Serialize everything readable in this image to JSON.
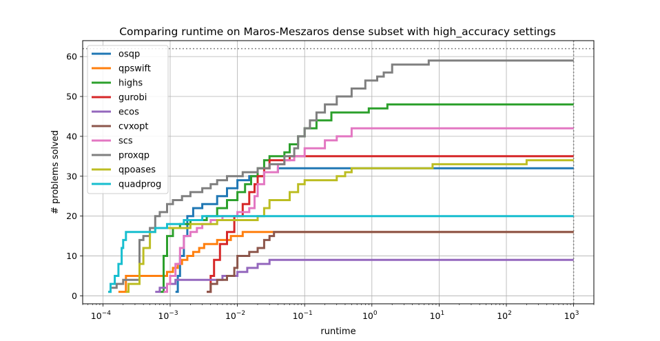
{
  "chart_data": {
    "type": "line",
    "title": "Comparing runtime on Maros-Meszaros dense subset with high_accuracy settings",
    "xlabel": "runtime",
    "ylabel": "# problems solved",
    "xscale": "log",
    "xlim": [
      5e-05,
      2000
    ],
    "ylim": [
      -2,
      64
    ],
    "xticks": [
      {
        "value": 0.0001,
        "base": "10",
        "exp": "−4"
      },
      {
        "value": 0.001,
        "base": "10",
        "exp": "−3"
      },
      {
        "value": 0.01,
        "base": "10",
        "exp": "−2"
      },
      {
        "value": 0.1,
        "base": "10",
        "exp": "−1"
      },
      {
        "value": 1,
        "base": "10",
        "exp": "0"
      },
      {
        "value": 10,
        "base": "10",
        "exp": "1"
      },
      {
        "value": 100,
        "base": "10",
        "exp": "2"
      },
      {
        "value": 1000,
        "base": "10",
        "exp": "3"
      }
    ],
    "yticks": [
      0,
      10,
      20,
      30,
      40,
      50,
      60
    ],
    "grid": true,
    "legend_position": "upper-left",
    "reference_lines": {
      "horizontal_y": 62,
      "vertical_x": 1000
    },
    "series": [
      {
        "name": "osqp",
        "color": "#1f77b4",
        "points": [
          [
            0.0012,
            1
          ],
          [
            0.0013,
            5
          ],
          [
            0.0014,
            10
          ],
          [
            0.0016,
            15
          ],
          [
            0.0018,
            20
          ],
          [
            0.0022,
            22
          ],
          [
            0.003,
            23
          ],
          [
            0.005,
            25
          ],
          [
            0.007,
            27
          ],
          [
            0.01,
            29
          ],
          [
            0.015,
            30
          ],
          [
            0.025,
            31
          ],
          [
            0.04,
            32
          ],
          [
            0.5,
            32
          ],
          [
            0.55,
            32
          ],
          [
            1000,
            32
          ]
        ]
      },
      {
        "name": "qpswift",
        "color": "#ff7f0e",
        "points": [
          [
            0.00017,
            1
          ],
          [
            0.00022,
            5
          ],
          [
            0.0007,
            5
          ],
          [
            0.0009,
            6
          ],
          [
            0.0011,
            7
          ],
          [
            0.0013,
            8
          ],
          [
            0.0015,
            9
          ],
          [
            0.0018,
            10
          ],
          [
            0.0022,
            11
          ],
          [
            0.0027,
            12
          ],
          [
            0.0032,
            13
          ],
          [
            0.005,
            14
          ],
          [
            0.008,
            15
          ],
          [
            0.012,
            16
          ],
          [
            0.025,
            16
          ],
          [
            1000,
            16
          ]
        ]
      },
      {
        "name": "highs",
        "color": "#2ca02c",
        "points": [
          [
            0.0007,
            1
          ],
          [
            0.0008,
            10
          ],
          [
            0.0009,
            15
          ],
          [
            0.0011,
            17
          ],
          [
            0.0014,
            18
          ],
          [
            0.002,
            19
          ],
          [
            0.0035,
            20
          ],
          [
            0.005,
            22
          ],
          [
            0.007,
            24
          ],
          [
            0.01,
            26
          ],
          [
            0.013,
            28
          ],
          [
            0.016,
            30
          ],
          [
            0.02,
            32
          ],
          [
            0.025,
            34
          ],
          [
            0.03,
            35
          ],
          [
            0.05,
            36
          ],
          [
            0.06,
            38
          ],
          [
            0.08,
            40
          ],
          [
            0.1,
            42
          ],
          [
            0.15,
            44
          ],
          [
            0.25,
            46
          ],
          [
            0.9,
            47
          ],
          [
            1.7,
            48
          ],
          [
            1000,
            48
          ]
        ]
      },
      {
        "name": "gurobi",
        "color": "#d62728",
        "points": [
          [
            0.0035,
            1
          ],
          [
            0.004,
            5
          ],
          [
            0.0045,
            9
          ],
          [
            0.0055,
            13
          ],
          [
            0.007,
            16
          ],
          [
            0.009,
            20
          ],
          [
            0.012,
            23
          ],
          [
            0.015,
            26
          ],
          [
            0.018,
            28
          ],
          [
            0.02,
            30
          ],
          [
            0.025,
            32
          ],
          [
            0.03,
            34
          ],
          [
            0.06,
            35
          ],
          [
            1000,
            35
          ]
        ]
      },
      {
        "name": "ecos",
        "color": "#9467bd",
        "points": [
          [
            0.0006,
            1
          ],
          [
            0.0007,
            2
          ],
          [
            0.0009,
            3
          ],
          [
            0.0012,
            4
          ],
          [
            0.004,
            4
          ],
          [
            0.006,
            5
          ],
          [
            0.01,
            6
          ],
          [
            0.014,
            7
          ],
          [
            0.02,
            8
          ],
          [
            0.03,
            9
          ],
          [
            0.05,
            9
          ],
          [
            1000,
            9
          ]
        ]
      },
      {
        "name": "cvxopt",
        "color": "#8c564b",
        "points": [
          [
            0.0035,
            1
          ],
          [
            0.004,
            3
          ],
          [
            0.005,
            4
          ],
          [
            0.007,
            5
          ],
          [
            0.009,
            7
          ],
          [
            0.01,
            10
          ],
          [
            0.015,
            11
          ],
          [
            0.02,
            12
          ],
          [
            0.025,
            14
          ],
          [
            0.03,
            15
          ],
          [
            0.035,
            16
          ],
          [
            1000,
            16
          ]
        ]
      },
      {
        "name": "scs",
        "color": "#e377c2",
        "points": [
          [
            0.0008,
            1
          ],
          [
            0.0009,
            3
          ],
          [
            0.001,
            5
          ],
          [
            0.0012,
            8
          ],
          [
            0.0014,
            12
          ],
          [
            0.0016,
            15
          ],
          [
            0.002,
            16
          ],
          [
            0.0025,
            17
          ],
          [
            0.003,
            18
          ],
          [
            0.004,
            19
          ],
          [
            0.006,
            20
          ],
          [
            0.01,
            21
          ],
          [
            0.015,
            22
          ],
          [
            0.018,
            25
          ],
          [
            0.02,
            28
          ],
          [
            0.025,
            31
          ],
          [
            0.04,
            33
          ],
          [
            0.05,
            34
          ],
          [
            0.07,
            35
          ],
          [
            0.1,
            37
          ],
          [
            0.2,
            39
          ],
          [
            0.3,
            40
          ],
          [
            0.5,
            42
          ],
          [
            1000,
            42
          ]
        ]
      },
      {
        "name": "proxqp",
        "color": "#7f7f7f",
        "points": [
          [
            0.00012,
            1
          ],
          [
            0.00013,
            2
          ],
          [
            0.00016,
            3
          ],
          [
            0.0002,
            4
          ],
          [
            0.00035,
            14
          ],
          [
            0.0004,
            15
          ],
          [
            0.0005,
            17
          ],
          [
            0.0006,
            20
          ],
          [
            0.0007,
            21
          ],
          [
            0.0009,
            23
          ],
          [
            0.0011,
            24
          ],
          [
            0.0015,
            25
          ],
          [
            0.002,
            26
          ],
          [
            0.003,
            27
          ],
          [
            0.004,
            28
          ],
          [
            0.005,
            29
          ],
          [
            0.007,
            30
          ],
          [
            0.012,
            31
          ],
          [
            0.02,
            32
          ],
          [
            0.03,
            33
          ],
          [
            0.05,
            35
          ],
          [
            0.07,
            37
          ],
          [
            0.08,
            40
          ],
          [
            0.1,
            42
          ],
          [
            0.12,
            44
          ],
          [
            0.15,
            46
          ],
          [
            0.2,
            48
          ],
          [
            0.3,
            50
          ],
          [
            0.5,
            52
          ],
          [
            0.8,
            54
          ],
          [
            1.2,
            55
          ],
          [
            1.5,
            56
          ],
          [
            2,
            58
          ],
          [
            2.5,
            58
          ],
          [
            7,
            59
          ],
          [
            1000,
            59
          ]
        ]
      },
      {
        "name": "qpoases",
        "color": "#bcbd22",
        "points": [
          [
            0.00022,
            1
          ],
          [
            0.00024,
            3
          ],
          [
            0.00035,
            8
          ],
          [
            0.0004,
            12
          ],
          [
            0.0005,
            16
          ],
          [
            0.0006,
            17
          ],
          [
            0.002,
            18
          ],
          [
            0.005,
            19
          ],
          [
            0.02,
            20
          ],
          [
            0.025,
            22
          ],
          [
            0.03,
            24
          ],
          [
            0.06,
            26
          ],
          [
            0.08,
            28
          ],
          [
            0.1,
            29
          ],
          [
            0.3,
            30
          ],
          [
            0.4,
            31
          ],
          [
            0.5,
            32
          ],
          [
            8,
            33
          ],
          [
            200,
            34
          ],
          [
            1000,
            34
          ]
        ]
      },
      {
        "name": "quadprog",
        "color": "#17becf",
        "points": [
          [
            0.00012,
            1
          ],
          [
            0.00013,
            3
          ],
          [
            0.00015,
            5
          ],
          [
            0.00017,
            8
          ],
          [
            0.00019,
            12
          ],
          [
            0.0002,
            14
          ],
          [
            0.00022,
            16
          ],
          [
            0.0006,
            17
          ],
          [
            0.0009,
            18
          ],
          [
            0.0016,
            19
          ],
          [
            0.003,
            20
          ],
          [
            1000,
            20
          ]
        ]
      }
    ]
  }
}
